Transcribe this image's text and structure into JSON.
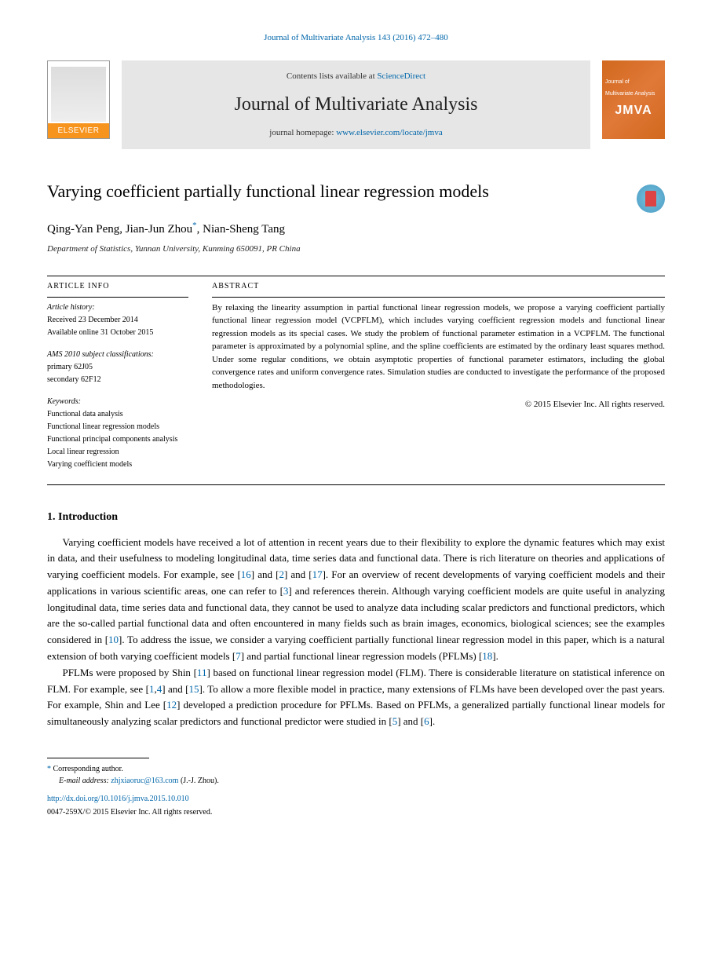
{
  "citation": {
    "prefix": "Journal of Multivariate Analysis 143 (2016) 472–480",
    "link_text": "Journal of Multivariate Analysis 143 (2016) 472–480"
  },
  "header": {
    "elsevier_label": "ELSEVIER",
    "contents_prefix": "Contents lists available at ",
    "sciencedirect": "ScienceDirect",
    "journal_title": "Journal of Multivariate Analysis",
    "homepage_prefix": "journal homepage: ",
    "homepage_url": "www.elsevier.com/locate/jmva",
    "cover_subtitle": "Journal of",
    "cover_title": "Multivariate Analysis",
    "cover_acronym": "JMVA"
  },
  "article": {
    "title": "Varying coefficient partially functional linear regression models",
    "authors": "Qing-Yan Peng, Jian-Jun Zhou",
    "corr_mark": "*",
    "last_author": ", Nian-Sheng Tang",
    "affiliation": "Department of Statistics, Yunnan University, Kunming 650091, PR China"
  },
  "info": {
    "heading": "ARTICLE INFO",
    "history_label": "Article history:",
    "received": "Received 23 December 2014",
    "available": "Available online 31 October 2015",
    "ams_label": "AMS 2010 subject classifications:",
    "ams1": "primary 62J05",
    "ams2": "secondary 62F12",
    "keywords_label": "Keywords:",
    "kw1": "Functional data analysis",
    "kw2": "Functional linear regression models",
    "kw3": "Functional principal components analysis",
    "kw4": "Local linear regression",
    "kw5": "Varying coefficient models"
  },
  "abstract": {
    "heading": "ABSTRACT",
    "text": "By relaxing the linearity assumption in partial functional linear regression models, we propose a varying coefficient partially functional linear regression model (VCPFLM), which includes varying coefficient regression models and functional linear regression models as its special cases. We study the problem of functional parameter estimation in a VCPFLM. The functional parameter is approximated by a polynomial spline, and the spline coefficients are estimated by the ordinary least squares method. Under some regular conditions, we obtain asymptotic properties of functional parameter estimators, including the global convergence rates and uniform convergence rates. Simulation studies are conducted to investigate the performance of the proposed methodologies.",
    "copyright": "© 2015 Elsevier Inc. All rights reserved."
  },
  "section1": {
    "heading": "1. Introduction",
    "p1_a": "Varying coefficient models have received a lot of attention in recent years due to their flexibility to explore the dynamic features which may exist in data, and their usefulness to modeling longitudinal data, time series data and functional data. There is rich literature on theories and applications of varying coefficient models. For example, see [",
    "r16": "16",
    "p1_b": "] and [",
    "r2": "2",
    "p1_c": "] and [",
    "r17": "17",
    "p1_d": "]. For an overview of recent developments of varying coefficient models and their applications in various scientific areas, one can refer to [",
    "r3": "3",
    "p1_e": "] and references therein. Although varying coefficient models are quite useful in analyzing longitudinal data, time series data and functional data, they cannot be used to analyze data including scalar predictors and functional predictors, which are the so-called partial functional data and often encountered in many fields such as brain images, economics, biological sciences; see the examples considered in [",
    "r10": "10",
    "p1_f": "]. To address the issue, we consider a varying coefficient partially functional linear regression model in this paper, which is a natural extension of both varying coefficient models [",
    "r7": "7",
    "p1_g": "] and partial functional linear regression models (PFLMs) [",
    "r18": "18",
    "p1_h": "].",
    "p2_a": "PFLMs were proposed by Shin [",
    "r11": "11",
    "p2_b": "] based on functional linear regression model (FLM). There is considerable literature on statistical inference on FLM. For example, see [",
    "r1": "1",
    "p2_c": ",",
    "r4": "4",
    "p2_d": "] and [",
    "r15": "15",
    "p2_e": "]. To allow a more flexible model in practice, many extensions of FLMs have been developed over the past years. For example, Shin and Lee [",
    "r12": "12",
    "p2_f": "] developed a prediction procedure for PFLMs. Based on PFLMs, a generalized partially functional linear models for simultaneously analyzing scalar predictors and functional predictor were studied in [",
    "r5": "5",
    "p2_g": "] and [",
    "r6": "6",
    "p2_h": "]."
  },
  "footnote": {
    "corr_label": "Corresponding author.",
    "email_label": "E-mail address:",
    "email": "zhjxiaoruc@163.com",
    "email_suffix": " (J.-J. Zhou)."
  },
  "doi": {
    "link": "http://dx.doi.org/10.1016/j.jmva.2015.10.010",
    "copyright": "0047-259X/© 2015 Elsevier Inc. All rights reserved."
  }
}
